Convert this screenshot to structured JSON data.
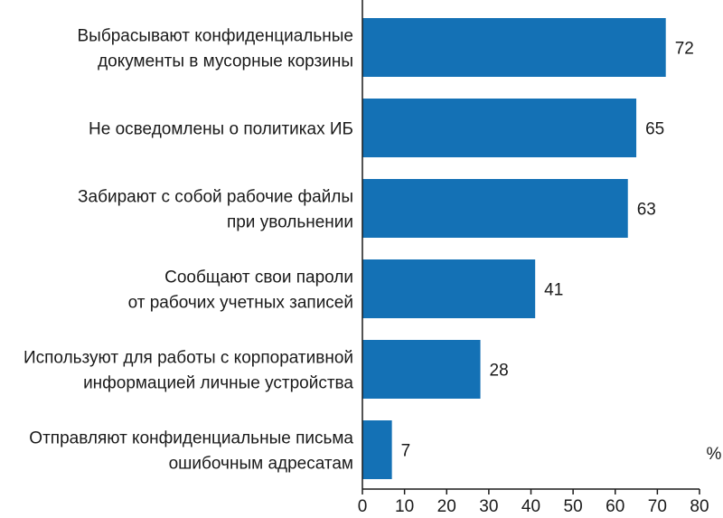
{
  "chart_data": {
    "type": "bar",
    "orientation": "horizontal",
    "categories": [
      [
        "Выбрасывают конфиденциальные",
        "документы в мусорные корзины"
      ],
      [
        "Не осведомлены о политиках ИБ"
      ],
      [
        "Забирают с собой рабочие файлы",
        "при увольнении"
      ],
      [
        "Сообщают свои пароли",
        "от рабочих учетных записей"
      ],
      [
        "Используют для работы с корпоративной",
        "информацией личные устройства"
      ],
      [
        "Отправляют конфиденциальные письма",
        "ошибочным адресатам"
      ]
    ],
    "values": [
      72,
      65,
      63,
      41,
      28,
      7
    ],
    "value_labels": [
      "72",
      "65",
      "63",
      "41",
      "28",
      "7"
    ],
    "xlim": [
      0,
      80
    ],
    "xticks": [
      "0",
      "10",
      "20",
      "30",
      "40",
      "50",
      "60",
      "70",
      "80"
    ],
    "unit": "%",
    "bar_color": "#1471b5",
    "axis_color": "#1a1a1a",
    "grid": false
  }
}
